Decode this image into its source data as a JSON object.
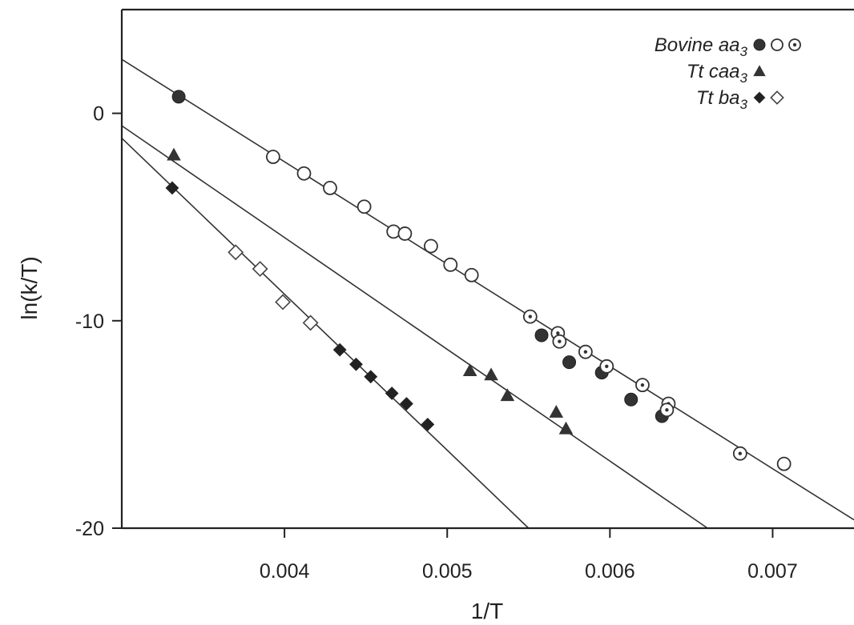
{
  "chart_data": {
    "type": "scatter",
    "title": "",
    "xlabel": "1/T",
    "ylabel": "ln(k/T)",
    "xlim": [
      0.003,
      0.0075
    ],
    "ylim": [
      -20,
      5
    ],
    "x_ticks": [
      {
        "value": 0.004,
        "label": "0.004"
      },
      {
        "value": 0.005,
        "label": "0.005"
      },
      {
        "value": 0.006,
        "label": "0.006"
      },
      {
        "value": 0.007,
        "label": "0.007"
      }
    ],
    "y_ticks": [
      {
        "value": 0,
        "label": "0"
      },
      {
        "value": -10,
        "label": "-10"
      },
      {
        "value": -20,
        "label": "-20"
      }
    ],
    "legend_placement": "top-right",
    "series": [
      {
        "name": "Bovine aa3",
        "legend_html_name": "Bovine aa",
        "legend_sub": "3",
        "marker": "filled-circle",
        "color": "#333333",
        "points": [
          [
            0.00335,
            0.8
          ],
          [
            0.00558,
            -10.7
          ],
          [
            0.00575,
            -12.0
          ],
          [
            0.00595,
            -12.5
          ],
          [
            0.00613,
            -13.8
          ],
          [
            0.00632,
            -14.6
          ]
        ]
      },
      {
        "name": "Bovine aa3",
        "marker": "open-circle",
        "color": "#333333",
        "points": [
          [
            0.00393,
            -2.1
          ],
          [
            0.00412,
            -2.9
          ],
          [
            0.00428,
            -3.6
          ],
          [
            0.00449,
            -4.5
          ],
          [
            0.00467,
            -5.7
          ],
          [
            0.00474,
            -5.8
          ],
          [
            0.0049,
            -6.4
          ],
          [
            0.00502,
            -7.3
          ],
          [
            0.00515,
            -7.8
          ],
          [
            0.00707,
            -16.9
          ]
        ]
      },
      {
        "name": "Bovine aa3",
        "marker": "dotted-circle",
        "color": "#333333",
        "points": [
          [
            0.00551,
            -9.8
          ],
          [
            0.00568,
            -10.6
          ],
          [
            0.00569,
            -11.0
          ],
          [
            0.00585,
            -11.5
          ],
          [
            0.00598,
            -12.2
          ],
          [
            0.0062,
            -13.1
          ],
          [
            0.00636,
            -14.0
          ],
          [
            0.00635,
            -14.3
          ],
          [
            0.0068,
            -16.4
          ]
        ]
      },
      {
        "name": "Tt caa3",
        "legend_html_name": "Tt caa",
        "legend_sub": "3",
        "marker": "filled-triangle",
        "color": "#333333",
        "points": [
          [
            0.00332,
            -2.0
          ],
          [
            0.00514,
            -12.4
          ],
          [
            0.00527,
            -12.6
          ],
          [
            0.00537,
            -13.6
          ],
          [
            0.00567,
            -14.4
          ],
          [
            0.00573,
            -15.2
          ]
        ]
      },
      {
        "name": "Tt ba3",
        "legend_html_name": "Tt ba",
        "legend_sub": "3",
        "marker": "filled-diamond",
        "color": "#333333",
        "points": [
          [
            0.00331,
            -3.6
          ],
          [
            0.00434,
            -11.4
          ],
          [
            0.00444,
            -12.1
          ],
          [
            0.00453,
            -12.7
          ],
          [
            0.00466,
            -13.5
          ],
          [
            0.00475,
            -14.0
          ],
          [
            0.00488,
            -15.0
          ]
        ]
      },
      {
        "name": "Tt ba3",
        "marker": "open-diamond",
        "color": "#333333",
        "points": [
          [
            0.0037,
            -6.7
          ],
          [
            0.00385,
            -7.5
          ],
          [
            0.00399,
            -9.1
          ],
          [
            0.00416,
            -10.1
          ]
        ]
      }
    ],
    "fit_lines": [
      {
        "x": [
          0.003,
          0.0075
        ],
        "y": [
          2.6,
          -19.6
        ]
      },
      {
        "x": [
          0.003,
          0.0066
        ],
        "y": [
          -0.6,
          -20.0
        ]
      },
      {
        "x": [
          0.003,
          0.0055
        ],
        "y": [
          -1.2,
          -20.0
        ]
      }
    ]
  }
}
